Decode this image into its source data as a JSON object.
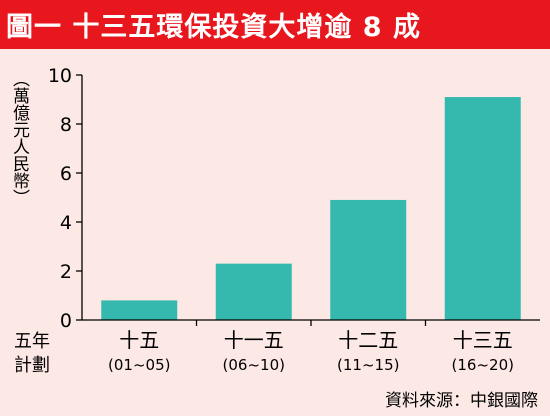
{
  "title": "圖一 十三五環保投資大增逾 8 成",
  "ylabel": "（萬億元人民幣）",
  "xlabel": [
    "五年",
    "計劃"
  ],
  "source": "資料來源：中銀國際",
  "colors": {
    "bar": "#35b9ae",
    "title_bg": "#e8161d",
    "page_bg": "#fce9e6"
  },
  "chart_data": {
    "type": "bar",
    "categories": [
      {
        "name": "十五",
        "period": "(01~05)"
      },
      {
        "name": "十一五",
        "period": "(06~10)"
      },
      {
        "name": "十二五",
        "period": "(11~15)"
      },
      {
        "name": "十三五",
        "period": "(16~20)"
      }
    ],
    "values": [
      0.8,
      2.3,
      4.9,
      9.1
    ],
    "ylim": [
      0,
      10
    ],
    "yticks": [
      "0",
      "2",
      "4",
      "6",
      "8",
      "10"
    ],
    "grid": false,
    "legend": "none"
  }
}
